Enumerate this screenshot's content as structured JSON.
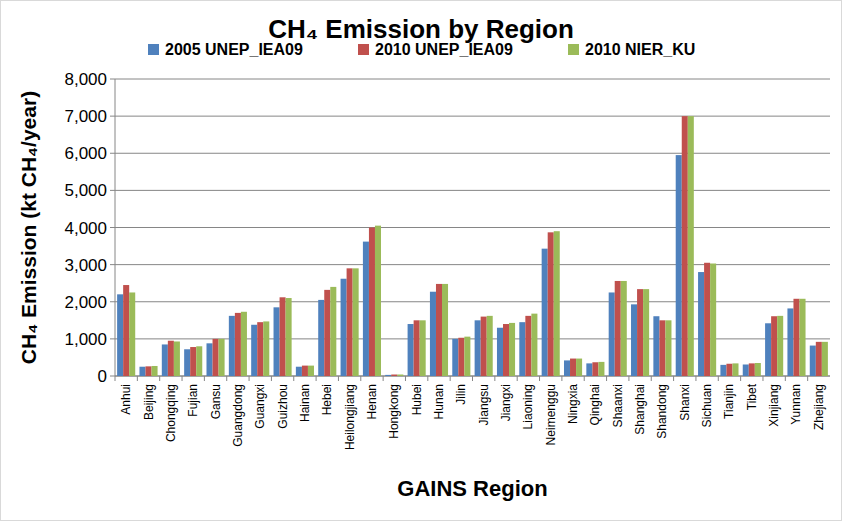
{
  "chart_data": {
    "type": "bar",
    "title": "CH₄ Emission by Region",
    "x_label": "GAINS Region",
    "y_label": "CH₄ Emission (kt CH₄/year)",
    "categories": [
      "Anhui",
      "Beijing",
      "Chongqing",
      "Fujian",
      "Gansu",
      "Guangdong",
      "Guangxi",
      "Guizhou",
      "Hainan",
      "Hebei",
      "Heilongjiang",
      "Henan",
      "Hongkong",
      "Hubei",
      "Hunan",
      "Jilin",
      "Jiangsu",
      "Jiangxi",
      "Liaoning",
      "Neimenggu",
      "Ningxia",
      "Qinghai",
      "Shaanxi",
      "Shanghai",
      "Shandong",
      "Shanxi",
      "Sichuan",
      "Tianjin",
      "Tibet",
      "Xinjiang",
      "Yunnan",
      "Zhejiang"
    ],
    "series": [
      {
        "name": "2005 UNEP_IEA09",
        "color": "#4f81bd",
        "values": [
          2200,
          250,
          850,
          720,
          880,
          1620,
          1380,
          1850,
          250,
          2050,
          2620,
          3620,
          30,
          1400,
          2270,
          1000,
          1500,
          1300,
          1450,
          3430,
          420,
          340,
          2250,
          1930,
          1610,
          5950,
          2800,
          300,
          310,
          1420,
          1820,
          820
        ]
      },
      {
        "name": "2010 UNEP_IEA09",
        "color": "#c0504d",
        "values": [
          2450,
          260,
          950,
          780,
          1000,
          1700,
          1450,
          2120,
          280,
          2320,
          2900,
          4000,
          40,
          1500,
          2480,
          1030,
          1600,
          1400,
          1620,
          3870,
          470,
          370,
          2560,
          2340,
          1500,
          7000,
          3050,
          330,
          340,
          1610,
          2080,
          920
        ]
      },
      {
        "name": "2010 NIER_KU",
        "color": "#9bbb59",
        "values": [
          2250,
          270,
          930,
          800,
          1000,
          1730,
          1470,
          2100,
          280,
          2400,
          2900,
          4050,
          40,
          1500,
          2480,
          1060,
          1620,
          1430,
          1680,
          3900,
          470,
          380,
          2560,
          2340,
          1500,
          7000,
          3030,
          340,
          350,
          1620,
          2080,
          920
        ]
      }
    ],
    "ylim": [
      0,
      8000
    ],
    "yticks": [
      0,
      {
        "value": 1000,
        "label": "1,000"
      },
      {
        "value": 2000,
        "label": "2,000"
      },
      {
        "value": 3000,
        "label": "3,000"
      },
      {
        "value": 4000,
        "label": "4,000"
      },
      {
        "value": 5000,
        "label": "5,000"
      },
      {
        "value": 6000,
        "label": "6,000"
      },
      {
        "value": 7000,
        "label": "7,000"
      },
      {
        "value": 8000,
        "label": "8,000"
      }
    ],
    "grid": true,
    "legend": "top"
  }
}
